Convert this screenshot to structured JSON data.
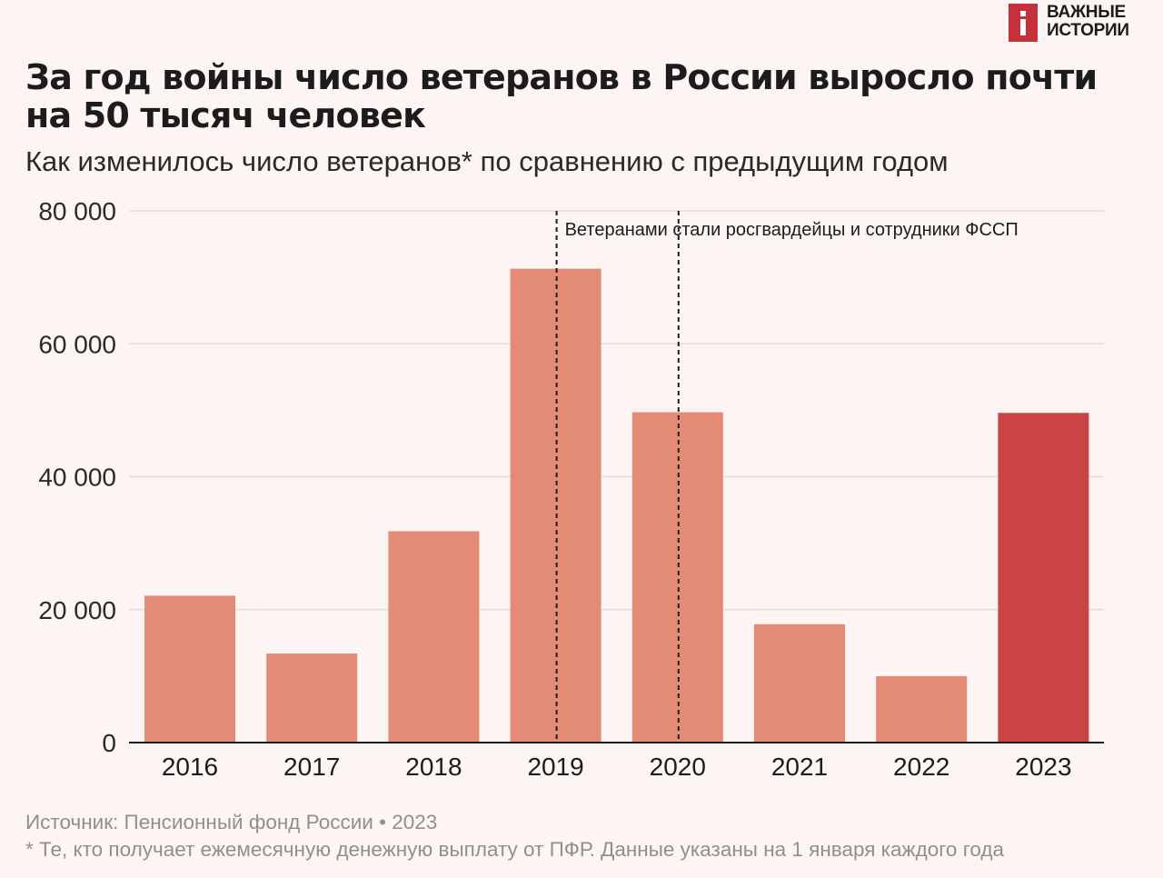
{
  "brand": {
    "line1": "ВАЖНЫЕ",
    "line2": "ИСТОРИИ",
    "logo_icon": "i-letter-icon",
    "logo_color": "#c5303a"
  },
  "header": {
    "title": "За год войны число ветеранов в России выросло почти на 50 тысяч человек",
    "subtitle": "Как изменилось число ветеранов* по сравнению с предыдущим годом"
  },
  "chart_data": {
    "type": "bar",
    "title": "За год войны число ветеранов в России выросло почти на 50 тысяч человек",
    "subtitle": "Как изменилось число ветеранов* по сравнению с предыдущим годом",
    "xlabel": "",
    "ylabel": "",
    "categories": [
      "2016",
      "2017",
      "2018",
      "2019",
      "2020",
      "2021",
      "2022",
      "2023"
    ],
    "values": [
      22100,
      13400,
      31800,
      71300,
      49700,
      17800,
      10000,
      49600
    ],
    "highlight_index": 7,
    "ylim": [
      0,
      80000
    ],
    "yticks": [
      0,
      20000,
      40000,
      60000,
      80000
    ],
    "ytick_labels": [
      "0",
      "20 000",
      "40 000",
      "60 000",
      "80 000"
    ],
    "grid": true,
    "colors": {
      "bar": "#e48b76",
      "highlight": "#ca4446",
      "grid": "#e4dcda",
      "axis": "#1c1c1c",
      "marker": "#1c1c1c"
    },
    "annotation": {
      "text": "Ветеранами стали росгвардейцы и сотрудники ФССП",
      "categories": [
        "2019",
        "2020"
      ]
    }
  },
  "footer": {
    "source": "Источник: Пенсионный фонд России • 2023",
    "footnote": "* Те, кто получает ежемесячную денежную выплату от ПФР. Данные указаны на 1 января каждого года"
  }
}
